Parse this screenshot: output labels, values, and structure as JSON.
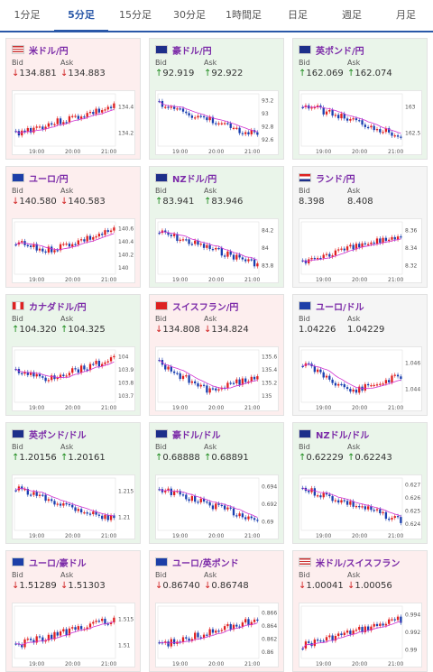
{
  "tabs": [
    "1分足",
    "5分足",
    "15分足",
    "30分足",
    "1時間足",
    "日足",
    "週足",
    "月足"
  ],
  "active_tab": "5分足",
  "labels": {
    "bid": "Bid",
    "ask": "Ask"
  },
  "colors": {
    "up_candle": "#e02020",
    "down_candle": "#1a3fb0",
    "ma_line": "#d030d0",
    "up_arrow": "#1a8a1a",
    "down_arrow": "#d02020"
  },
  "cards": [
    {
      "name": "米ドル/円",
      "flag": "US",
      "dir": "down",
      "bid": "↓134.881",
      "ask": "↓134.883",
      "yticks": [
        "134.4",
        "134.2"
      ],
      "xticks": [
        "19:00",
        "20:00",
        "21:00"
      ],
      "trend": "up"
    },
    {
      "name": "豪ドル/円",
      "flag": "AU",
      "dir": "up",
      "bid": "↑92.919",
      "ask": "↑92.922",
      "yticks": [
        "93.2",
        "93",
        "92.8",
        "92.6"
      ],
      "xticks": [
        "19:00",
        "20:00",
        "21:00"
      ],
      "trend": "down"
    },
    {
      "name": "英ポンド/円",
      "flag": "GB",
      "dir": "up",
      "bid": "↑162.069",
      "ask": "↑162.074",
      "yticks": [
        "163",
        "162.5"
      ],
      "xticks": [
        "19:00",
        "20:00",
        "21:00"
      ],
      "trend": "down"
    },
    {
      "name": "ユーロ/円",
      "flag": "EU",
      "dir": "down",
      "bid": "↓140.580",
      "ask": "↓140.583",
      "yticks": [
        "140.6",
        "140.4",
        "140.2",
        "140"
      ],
      "xticks": [
        "19:00",
        "20:00",
        "21:00"
      ],
      "trend": "vup"
    },
    {
      "name": "NZドル/円",
      "flag": "NZ",
      "dir": "up",
      "bid": "↑83.941",
      "ask": "↑83.946",
      "yticks": [
        "84.2",
        "84",
        "83.8"
      ],
      "xticks": [
        "19:00",
        "20:00",
        "21:00"
      ],
      "trend": "down"
    },
    {
      "name": "ランド/円",
      "flag": "ZA",
      "dir": "flat",
      "bid": "8.398",
      "ask": "8.408",
      "yticks": [
        "8.36",
        "8.34",
        "8.32"
      ],
      "xticks": [
        "19:00",
        "20:00",
        "21:00"
      ],
      "trend": "up"
    },
    {
      "name": "カナダドル/円",
      "flag": "CA",
      "dir": "up",
      "bid": "↑104.320",
      "ask": "↑104.325",
      "yticks": [
        "104",
        "103.9",
        "103.8",
        "103.7"
      ],
      "xticks": [
        "19:00",
        "20:00",
        "21:00"
      ],
      "trend": "vup"
    },
    {
      "name": "スイスフラン/円",
      "flag": "CH",
      "dir": "down",
      "bid": "↓134.808",
      "ask": "↓134.824",
      "yticks": [
        "135.6",
        "135.4",
        "135.2",
        "135"
      ],
      "xticks": [
        "19:00",
        "20:00",
        "21:00"
      ],
      "trend": "v"
    },
    {
      "name": "ユーロ/ドル",
      "flag": "EU",
      "dir": "flat",
      "bid": "1.04226",
      "ask": "1.04229",
      "yticks": [
        "1.046",
        "1.044"
      ],
      "xticks": [
        "19:00",
        "20:00",
        "21:00"
      ],
      "trend": "v"
    },
    {
      "name": "英ポンド/ドル",
      "flag": "GB",
      "dir": "up",
      "bid": "↑1.20156",
      "ask": "↑1.20161",
      "yticks": [
        "1.215",
        "1.21"
      ],
      "xticks": [
        "19:00",
        "20:00",
        "21:00"
      ],
      "trend": "down"
    },
    {
      "name": "豪ドル/ドル",
      "flag": "AU",
      "dir": "up",
      "bid": "↑0.68888",
      "ask": "↑0.68891",
      "yticks": [
        "0.694",
        "0.692",
        "0.69"
      ],
      "xticks": [
        "19:00",
        "20:00",
        "21:00"
      ],
      "trend": "down"
    },
    {
      "name": "NZドル/ドル",
      "flag": "NZ",
      "dir": "up",
      "bid": "↑0.62229",
      "ask": "↑0.62243",
      "yticks": [
        "0.627",
        "0.626",
        "0.625",
        "0.624"
      ],
      "xticks": [
        "19:00",
        "20:00",
        "21:00"
      ],
      "trend": "down"
    },
    {
      "name": "ユーロ/豪ドル",
      "flag": "EU",
      "dir": "down",
      "bid": "↓1.51289",
      "ask": "↓1.51303",
      "yticks": [
        "1.515",
        "1.51"
      ],
      "xticks": [
        "19:00",
        "20:00",
        "21:00"
      ],
      "trend": "up"
    },
    {
      "name": "ユーロ/英ポンド",
      "flag": "EU",
      "dir": "down",
      "bid": "↓0.86740",
      "ask": "↓0.86748",
      "yticks": [
        "0.866",
        "0.864",
        "0.862",
        "0.86"
      ],
      "xticks": [
        "19:00",
        "20:00",
        "21:00"
      ],
      "trend": "up"
    },
    {
      "name": "米ドル/スイスフラン",
      "flag": "US",
      "dir": "down",
      "bid": "↓1.00041",
      "ask": "↓1.00056",
      "yticks": [
        "0.994",
        "0.992",
        "0.99"
      ],
      "xticks": [
        "19:00",
        "20:00",
        "21:00"
      ],
      "trend": "up"
    }
  ]
}
